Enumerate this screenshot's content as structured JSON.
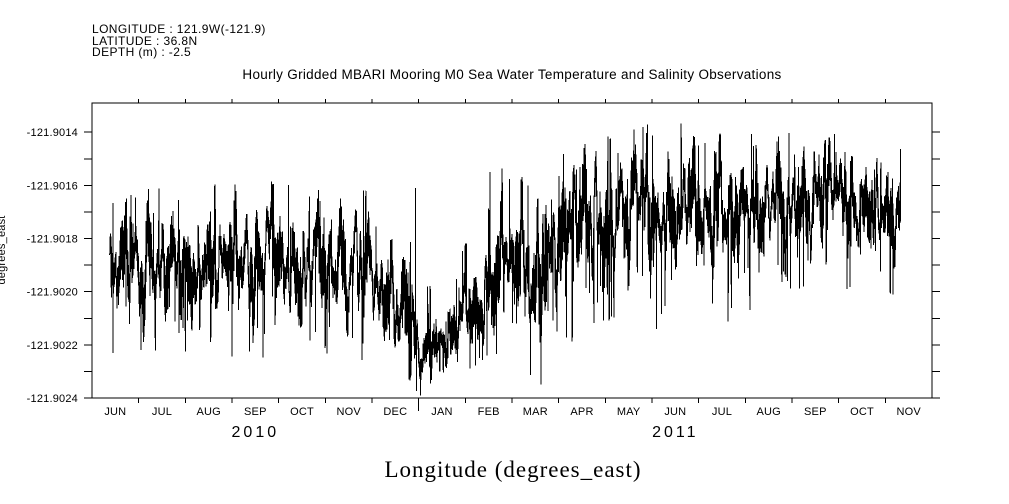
{
  "meta": {
    "background": "#ffffff",
    "foreground": "#000000"
  },
  "header": {
    "longitude_line": "LONGITUDE : 121.9W(-121.9)",
    "latitude_line": "LATITUDE : 36.8N",
    "depth_line": "DEPTH (m) : -2.5"
  },
  "title": "Hourly Gridded MBARI Mooring M0 Sea Water Temperature and Salinity Observations",
  "axis_label_bottom": "Longitude (degrees_east)",
  "axis_label_left": "degrees_east",
  "chart_data": {
    "type": "line",
    "title": "Hourly Gridded MBARI Mooring M0 Sea Water Temperature and Salinity Observations",
    "series_name": "Longitude (degrees_east)",
    "line_color": "#000000",
    "sampling": "hourly",
    "x_start": "01-JUN-2010",
    "x_end": "01-DEC-2011",
    "x_month_labels": [
      "JUN",
      "JUL",
      "AUG",
      "SEP",
      "OCT",
      "NOV",
      "DEC",
      "JAN",
      "FEB",
      "MAR",
      "APR",
      "MAY",
      "JUN",
      "JUL",
      "AUG",
      "SEP",
      "OCT",
      "NOV"
    ],
    "x_year_labels": [
      {
        "label": "2010",
        "center_month_index": 3.5
      },
      {
        "label": "2011",
        "center_month_index": 12.5
      }
    ],
    "year_boundary_month_index": 7,
    "y_ticks": [
      {
        "value": -121.9014,
        "label": "-121.9014"
      },
      {
        "value": -121.9016,
        "label": "-121.9016"
      },
      {
        "value": -121.9018,
        "label": "-121.9018"
      },
      {
        "value": -121.902,
        "label": "-121.9020"
      },
      {
        "value": -121.9022,
        "label": "-121.9022"
      },
      {
        "value": -121.9024,
        "label": "-121.9024"
      }
    ],
    "y_minor_step": 0.0001,
    "y_range_top": -121.90129,
    "y_range_bottom": -121.9024,
    "data_start_month": 0.38,
    "data_end_month": 17.33,
    "monthly_envelope": [
      {
        "t": 0.38,
        "mean": -121.9019,
        "max": -121.90163,
        "min": -121.90224
      },
      {
        "t": 1.5,
        "mean": -121.90188,
        "max": -121.90161,
        "min": -121.90221
      },
      {
        "t": 2.5,
        "mean": -121.90189,
        "max": -121.9016,
        "min": -121.90223
      },
      {
        "t": 3.5,
        "mean": -121.90187,
        "max": -121.90159,
        "min": -121.90225
      },
      {
        "t": 4.5,
        "mean": -121.90188,
        "max": -121.90159,
        "min": -121.90222
      },
      {
        "t": 5.5,
        "mean": -121.90191,
        "max": -121.90161,
        "min": -121.90224
      },
      {
        "t": 6.35,
        "mean": -121.90197,
        "max": -121.90164,
        "min": -121.90228
      },
      {
        "t": 6.8,
        "mean": -121.90198,
        "max": -121.90159,
        "min": -121.90233
      },
      {
        "t": 7.05,
        "mean": -121.9022,
        "max": -121.90197,
        "min": -121.9024
      },
      {
        "t": 7.6,
        "mean": -121.90221,
        "max": -121.902,
        "min": -121.90236
      },
      {
        "t": 8.05,
        "mean": -121.90209,
        "max": -121.9018,
        "min": -121.90231
      },
      {
        "t": 8.55,
        "mean": -121.90193,
        "max": -121.90154,
        "min": -121.90222
      },
      {
        "t": 9.2,
        "mean": -121.90188,
        "max": -121.90152,
        "min": -121.90228
      },
      {
        "t": 9.65,
        "mean": -121.90189,
        "max": -121.90154,
        "min": -121.90236
      },
      {
        "t": 10.5,
        "mean": -121.90173,
        "max": -121.90144,
        "min": -121.90216
      },
      {
        "t": 11.5,
        "mean": -121.90166,
        "max": -121.90139,
        "min": -121.90206
      },
      {
        "t": 12.5,
        "mean": -121.90167,
        "max": -121.90136,
        "min": -121.9021
      },
      {
        "t": 13.5,
        "mean": -121.9017,
        "max": -121.90141,
        "min": -121.90212
      },
      {
        "t": 14.5,
        "mean": -121.90167,
        "max": -121.90141,
        "min": -121.90203
      },
      {
        "t": 15.5,
        "mean": -121.90166,
        "max": -121.9014,
        "min": -121.902
      },
      {
        "t": 16.5,
        "mean": -121.90165,
        "max": -121.90139,
        "min": -121.90198
      },
      {
        "t": 17.33,
        "mean": -121.90169,
        "max": -121.90143,
        "min": -121.90201
      }
    ],
    "notable_extremes": [
      {
        "t": 0.45,
        "value": -121.90223
      },
      {
        "t": 6.93,
        "value": -121.90161
      },
      {
        "t": 7.04,
        "value": -121.90239
      },
      {
        "t": 8.53,
        "value": -121.90155
      },
      {
        "t": 9.62,
        "value": -121.90235
      },
      {
        "t": 11.9,
        "value": -121.90137
      },
      {
        "t": 12.1,
        "value": -121.90214
      }
    ],
    "seed": 20100601
  }
}
